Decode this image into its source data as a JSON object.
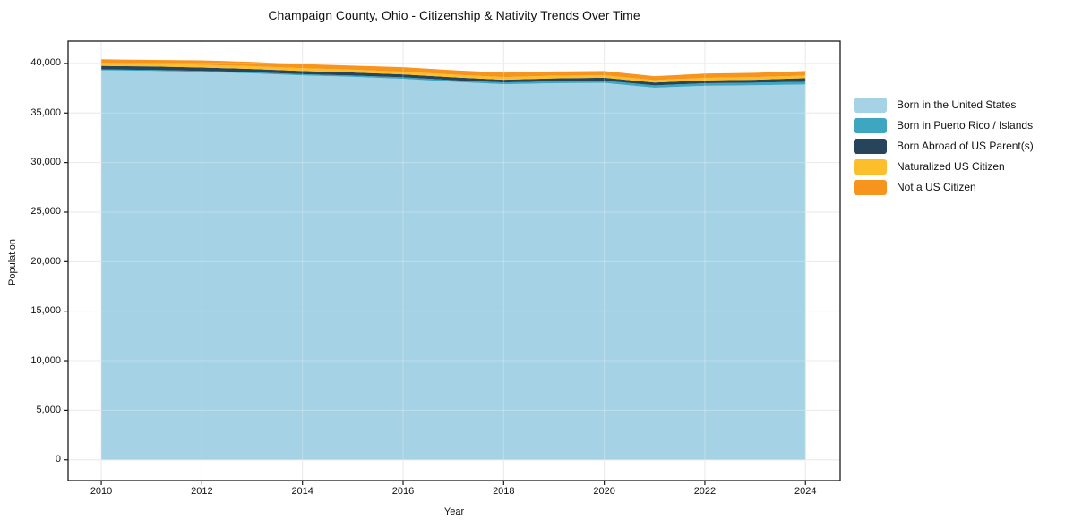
{
  "page": {
    "background": "#ffffff"
  },
  "chart_data": {
    "type": "area",
    "stacked": true,
    "title": "Champaign County, Ohio - Citizenship & Nativity Trends Over Time",
    "xlabel": "Year",
    "ylabel": "Population",
    "x": [
      2010,
      2011,
      2012,
      2013,
      2014,
      2015,
      2016,
      2017,
      2018,
      2019,
      2020,
      2021,
      2022,
      2023,
      2024
    ],
    "series": [
      {
        "name": "Born in the United States",
        "color": "#A5D2E5",
        "values": [
          39300,
          39250,
          39150,
          39000,
          38800,
          38650,
          38450,
          38150,
          37900,
          38000,
          38040,
          37550,
          37750,
          37800,
          37880
        ]
      },
      {
        "name": "Born in Puerto Rico / Islands",
        "color": "#3EA6C0",
        "values": [
          90,
          95,
          100,
          110,
          120,
          130,
          150,
          160,
          180,
          200,
          220,
          240,
          250,
          260,
          270
        ]
      },
      {
        "name": "Born Abroad of US Parent(s)",
        "color": "#26455A",
        "values": [
          360,
          350,
          340,
          330,
          320,
          310,
          300,
          290,
          280,
          290,
          300,
          280,
          290,
          300,
          360
        ]
      },
      {
        "name": "Naturalized US Citizen",
        "color": "#FCBF2B",
        "values": [
          270,
          270,
          270,
          280,
          280,
          280,
          270,
          270,
          270,
          270,
          250,
          250,
          260,
          270,
          270
        ]
      },
      {
        "name": "Not a US Citizen",
        "color": "#F7941E",
        "values": [
          400,
          390,
          450,
          430,
          420,
          410,
          450,
          440,
          450,
          430,
          420,
          400,
          420,
          430,
          450
        ]
      }
    ],
    "xlim": [
      2009.34,
      2024.69
    ],
    "ylim": [
      -2100,
      42250
    ],
    "y_ticks": {
      "values": [
        0,
        5000,
        10000,
        15000,
        20000,
        25000,
        30000,
        35000,
        40000
      ],
      "labels": [
        "0",
        "5,000",
        "10,000",
        "15,000",
        "20,000",
        "25,000",
        "30,000",
        "35,000",
        "40,000"
      ]
    },
    "x_ticks": {
      "values": [
        2010,
        2012,
        2014,
        2016,
        2018,
        2020,
        2022,
        2024
      ],
      "labels": [
        "2010",
        "2012",
        "2014",
        "2016",
        "2018",
        "2020",
        "2022",
        "2024"
      ]
    },
    "grid": true,
    "legend_position": "right",
    "axis_color": "#1a1a1a",
    "grid_color": "#e2e2e2"
  }
}
